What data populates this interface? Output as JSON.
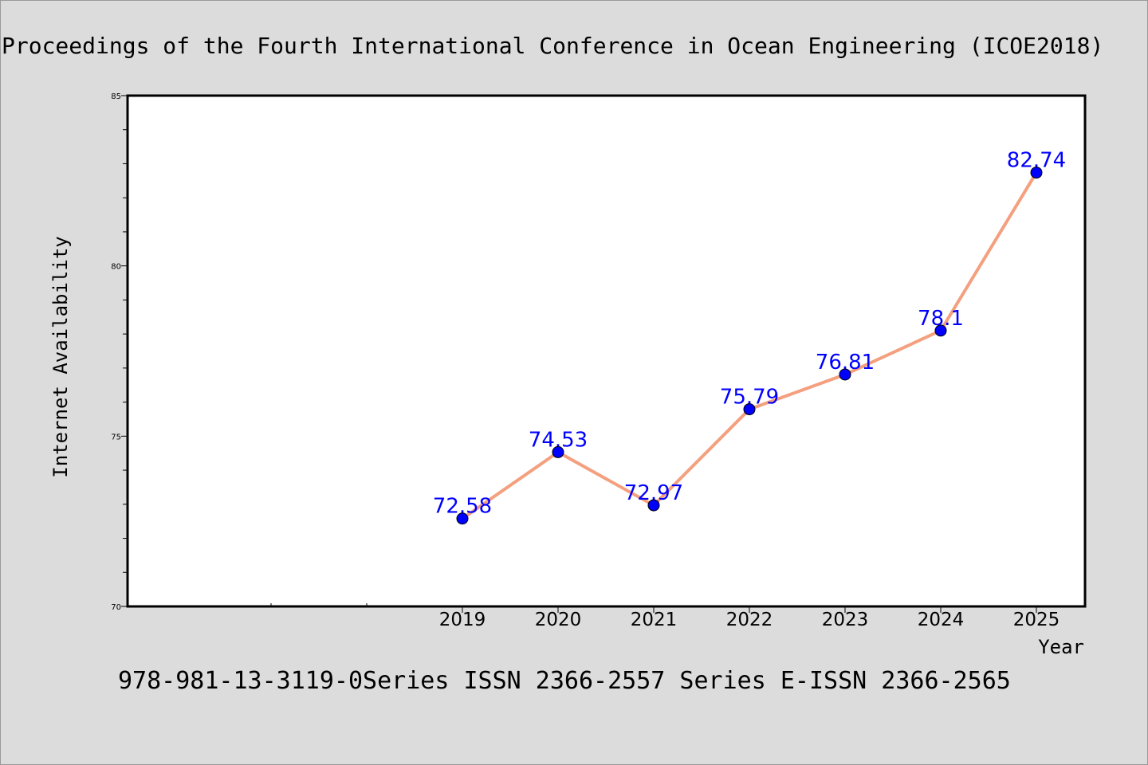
{
  "title": "Proceedings of the Fourth International Conference in Ocean Engineering (ICOE2018)",
  "footer": "978-981-13-3119-0Series ISSN 2366-2557 Series E-ISSN 2366-2565",
  "colors": {
    "background": "#dcdcdc",
    "plot_background": "#ffffff",
    "line": "#f4a07f",
    "marker": "#0000ff",
    "data_label": "#0000ff"
  },
  "chart_data": {
    "type": "line",
    "xlabel": "Year",
    "ylabel": "Internet Availability",
    "ylim": [
      70,
      85
    ],
    "yticks": [
      70,
      75,
      80,
      85
    ],
    "x_start": 2016,
    "grid": false,
    "categories": [
      "2019",
      "2020",
      "2021",
      "2022",
      "2023",
      "2024",
      "2025"
    ],
    "series": [
      {
        "values": [
          72.58,
          74.53,
          72.97,
          75.79,
          76.81,
          78.1,
          82.74
        ],
        "labels": [
          "72.58",
          "74.53",
          "72.97",
          "75.79",
          "76.81",
          "78.1",
          "82.74"
        ]
      }
    ]
  }
}
